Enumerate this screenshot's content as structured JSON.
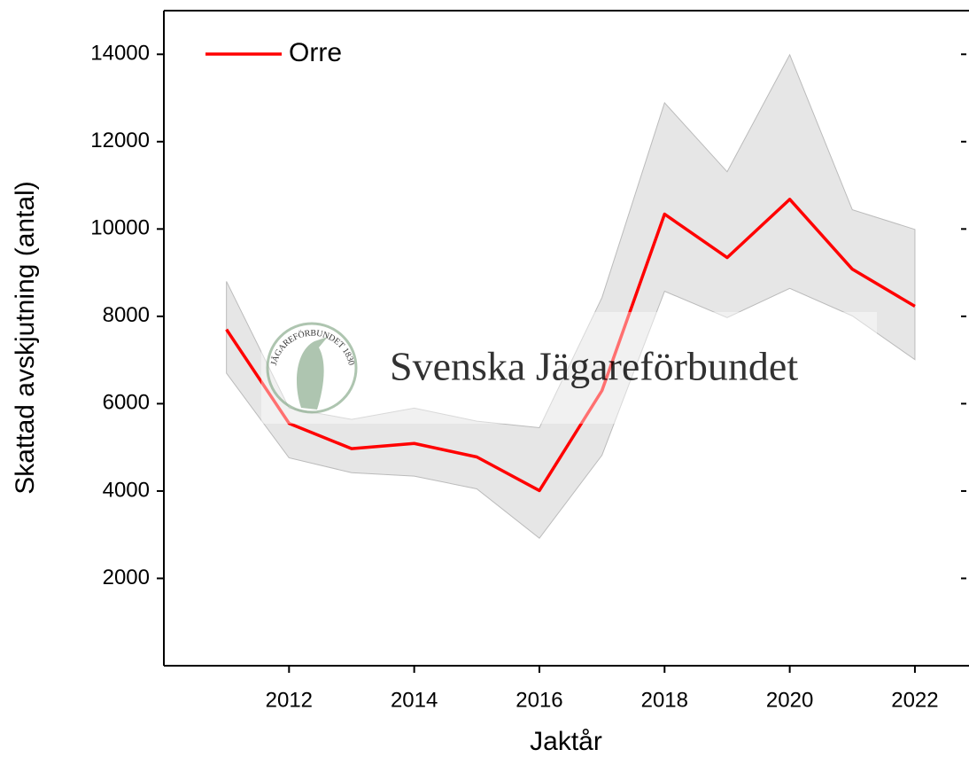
{
  "chart_data": {
    "type": "line",
    "x_label": "Jaktår",
    "y_label": "Skattad avskjutning (antal)",
    "x": [
      2011,
      2012,
      2013,
      2014,
      2015,
      2016,
      2017,
      2018,
      2019,
      2020,
      2021,
      2022
    ],
    "series": [
      {
        "name": "Orre",
        "color": "#ff0000",
        "values": [
          7700,
          5550,
          4970,
          5090,
          4780,
          4010,
          6300,
          10340,
          9345,
          10680,
          9080,
          8230
        ],
        "lower": [
          6700,
          4760,
          4420,
          4340,
          4050,
          2920,
          4820,
          8575,
          7970,
          8640,
          8010,
          7010
        ],
        "upper": [
          8800,
          5900,
          5640,
          5900,
          5600,
          5450,
          8430,
          12890,
          11310,
          13990,
          10440,
          9990
        ],
        "band_color": "#e6e6e6"
      }
    ],
    "xlim": [
      2010,
      2022.85
    ],
    "ylim": [
      0,
      15000
    ],
    "xticks": [
      2012,
      2014,
      2016,
      2018,
      2020,
      2022
    ],
    "yticks": [
      2000,
      4000,
      6000,
      8000,
      10000,
      12000,
      14000
    ],
    "legend": "upper left",
    "watermark": "Svenska Jägareförbundet",
    "logo_text": "JÄGAREFÖRBUNDET 1830"
  }
}
